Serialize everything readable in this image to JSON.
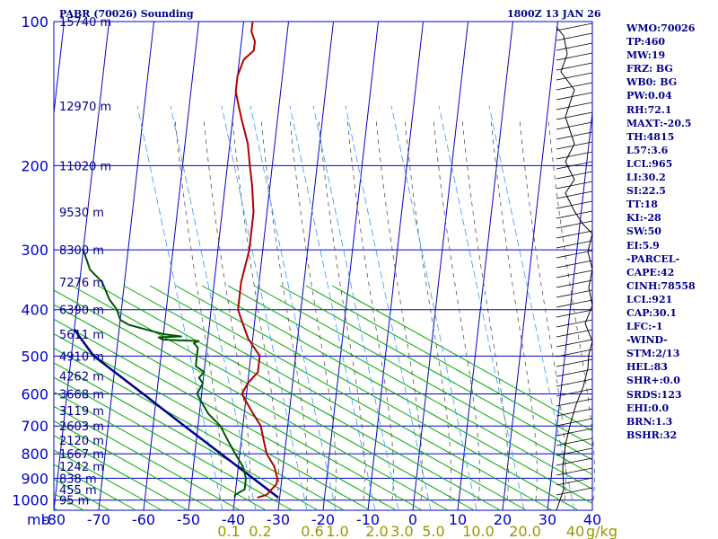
{
  "header": {
    "title": "PABR (70026) Sounding",
    "time": "1800Z 13 JAN 26"
  },
  "chart_data": {
    "type": "skew-t log-p sounding",
    "y_unit": "hPa",
    "x_unit": "°C",
    "pressure_ticks": [
      "100",
      "200",
      "300",
      "400",
      "500",
      "600",
      "700",
      "800",
      "900",
      "1000"
    ],
    "temperature_ticks": [
      "-80",
      "-70",
      "-60",
      "-50",
      "-40",
      "-30",
      "-20",
      "-10",
      "0",
      "10",
      "20",
      "30",
      "40"
    ],
    "bottom_left_label": "mb",
    "mixing_ratio_labels": [
      "0.1",
      "0.2",
      "0.6",
      "1.0",
      "2.0",
      "3.0",
      "5.0",
      "10.0",
      "20.0",
      "40"
    ],
    "mixing_ratio_unit": "g/kg",
    "height_labels": [
      {
        "p": 100,
        "text": "15740 m"
      },
      {
        "p": 150,
        "text": "12970 m"
      },
      {
        "p": 200,
        "text": "11020 m"
      },
      {
        "p": 250,
        "text": "9530 m"
      },
      {
        "p": 300,
        "text": "8300 m"
      },
      {
        "p": 350,
        "text": "7276 m"
      },
      {
        "p": 400,
        "text": "6390 m"
      },
      {
        "p": 450,
        "text": "5611 m"
      },
      {
        "p": 500,
        "text": "4910 m"
      },
      {
        "p": 550,
        "text": "4262 m"
      },
      {
        "p": 600,
        "text": "3668 m"
      },
      {
        "p": 650,
        "text": "3119 m"
      },
      {
        "p": 700,
        "text": "2603 m"
      },
      {
        "p": 750,
        "text": "2120 m"
      },
      {
        "p": 800,
        "text": "1667 m"
      },
      {
        "p": 850,
        "text": "1242 m"
      },
      {
        "p": 900,
        "text": "838 m"
      },
      {
        "p": 950,
        "text": "455 m"
      },
      {
        "p": 1000,
        "text": "95 m"
      }
    ],
    "temperature_profile": [
      [
        988,
        -35
      ],
      [
        975,
        -33
      ],
      [
        950,
        -32
      ],
      [
        925,
        -31
      ],
      [
        900,
        -31
      ],
      [
        850,
        -32
      ],
      [
        800,
        -34
      ],
      [
        750,
        -35
      ],
      [
        700,
        -36
      ],
      [
        660,
        -38
      ],
      [
        620,
        -40
      ],
      [
        600,
        -41
      ],
      [
        570,
        -40
      ],
      [
        540,
        -38
      ],
      [
        500,
        -38
      ],
      [
        460,
        -41
      ],
      [
        420,
        -43
      ],
      [
        400,
        -44
      ],
      [
        350,
        -44
      ],
      [
        300,
        -43
      ],
      [
        250,
        -43
      ],
      [
        220,
        -44
      ],
      [
        200,
        -45
      ],
      [
        180,
        -46
      ],
      [
        160,
        -48
      ],
      [
        150,
        -49
      ],
      [
        140,
        -50
      ],
      [
        130,
        -50
      ],
      [
        120,
        -49
      ],
      [
        115,
        -47
      ],
      [
        110,
        -47
      ],
      [
        105,
        -48
      ],
      [
        100,
        -48
      ]
    ],
    "dewpoint_profile": [
      [
        988,
        -40
      ],
      [
        975,
        -40
      ],
      [
        950,
        -38
      ],
      [
        925,
        -38
      ],
      [
        900,
        -38
      ],
      [
        850,
        -39
      ],
      [
        800,
        -41
      ],
      [
        750,
        -43
      ],
      [
        700,
        -45
      ],
      [
        660,
        -48
      ],
      [
        620,
        -50
      ],
      [
        600,
        -51
      ],
      [
        570,
        -50
      ],
      [
        555,
        -51
      ],
      [
        540,
        -50
      ],
      [
        525,
        -52
      ],
      [
        500,
        -52
      ],
      [
        480,
        -52
      ],
      [
        470,
        -53
      ],
      [
        465,
        -52
      ],
      [
        462,
        -60
      ],
      [
        457,
        -61
      ],
      [
        455,
        -56
      ],
      [
        450,
        -60
      ],
      [
        440,
        -64
      ],
      [
        430,
        -68
      ],
      [
        420,
        -70
      ],
      [
        400,
        -71
      ],
      [
        380,
        -73
      ],
      [
        350,
        -75
      ],
      [
        330,
        -78
      ],
      [
        300,
        -80
      ]
    ],
    "parcel_profile": [
      [
        988,
        -30.3
      ],
      [
        700,
        -53
      ],
      [
        600,
        -63
      ],
      [
        500,
        -75
      ],
      [
        440,
        -80
      ]
    ]
  },
  "indices": [
    "WMO:70026",
    "TP:460",
    "MW:19",
    "FRZ: BG",
    "WB0: BG",
    "PW:0.04",
    "RH:72.1",
    "MAXT:-20.5",
    "TH:4815",
    "L57:3.6",
    "LCL:965",
    "LI:30.2",
    "SI:22.5",
    "TT:18",
    "KI:-28",
    "SW:50",
    "EI:5.9",
    "-PARCEL-",
    "CAPE:42",
    "CINH:78558",
    "LCL:921",
    "CAP:30.1",
    "LFC:-1",
    "-WIND-",
    "STM:2/13",
    "HEL:83",
    "SHR+:0.0",
    "SRDS:123",
    "EHI:0.0",
    "BRN:1.3",
    "BSHR:32"
  ],
  "colors": {
    "background": "#ffffff",
    "isobar_isotherm": "#0000cc",
    "dry_adiabat": "#00aa00",
    "moist_adiabat": "#555555",
    "mixing_ratio": "#3399ff",
    "temperature": "#b00000",
    "dewpoint": "#005500",
    "parcel": "#00008b",
    "axis_text": "#00008b",
    "mixing_ratio_text": "#999900"
  }
}
